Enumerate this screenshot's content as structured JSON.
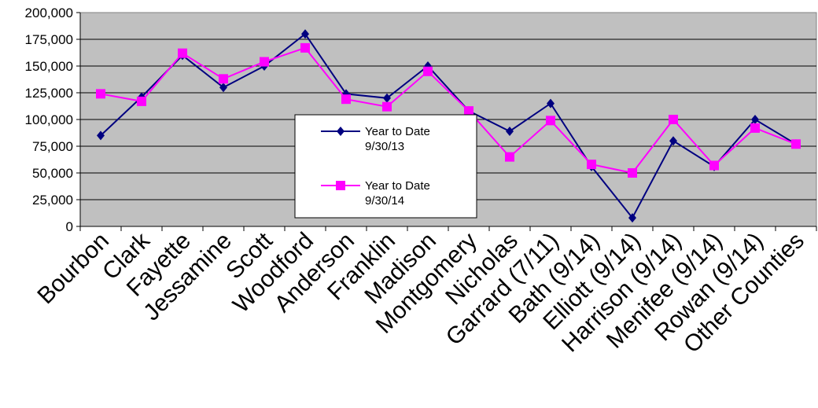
{
  "chart_data": {
    "type": "line",
    "categories": [
      "Bourbon",
      "Clark",
      "Fayette",
      "Jessamine",
      "Scott",
      "Woodford",
      "Anderson",
      "Franklin",
      "Madison",
      "Montgomery",
      "Nicholas",
      "Garrard (7/11)",
      "Bath (9/14)",
      "Elliott (9/14)",
      "Harrison (9/14)",
      "Menifee (9/14)",
      "Rowan (9/14)",
      "Other Counties"
    ],
    "series": [
      {
        "name_line1": "Year to Date",
        "name_line2": "9/30/13",
        "color": "#000080",
        "marker": "diamond",
        "values": [
          85000,
          121000,
          160000,
          130000,
          150000,
          180000,
          124000,
          120000,
          150000,
          108000,
          89000,
          115000,
          56000,
          8000,
          80000,
          56000,
          100000,
          77000
        ]
      },
      {
        "name_line1": "Year to Date",
        "name_line2": "9/30/14",
        "color": "#ff00ff",
        "marker": "square",
        "values": [
          124000,
          117000,
          162000,
          138000,
          154000,
          167000,
          119000,
          112000,
          145000,
          108000,
          65000,
          99000,
          58000,
          50000,
          100000,
          57000,
          92000,
          77000
        ]
      }
    ],
    "y_ticks": [
      "0",
      "25,000",
      "50,000",
      "75,000",
      "100,000",
      "125,000",
      "150,000",
      "175,000",
      "200,000"
    ],
    "ylim": [
      0,
      200000
    ],
    "grid": true,
    "plot_background": "#c0c0c0",
    "legend_position": "center"
  }
}
